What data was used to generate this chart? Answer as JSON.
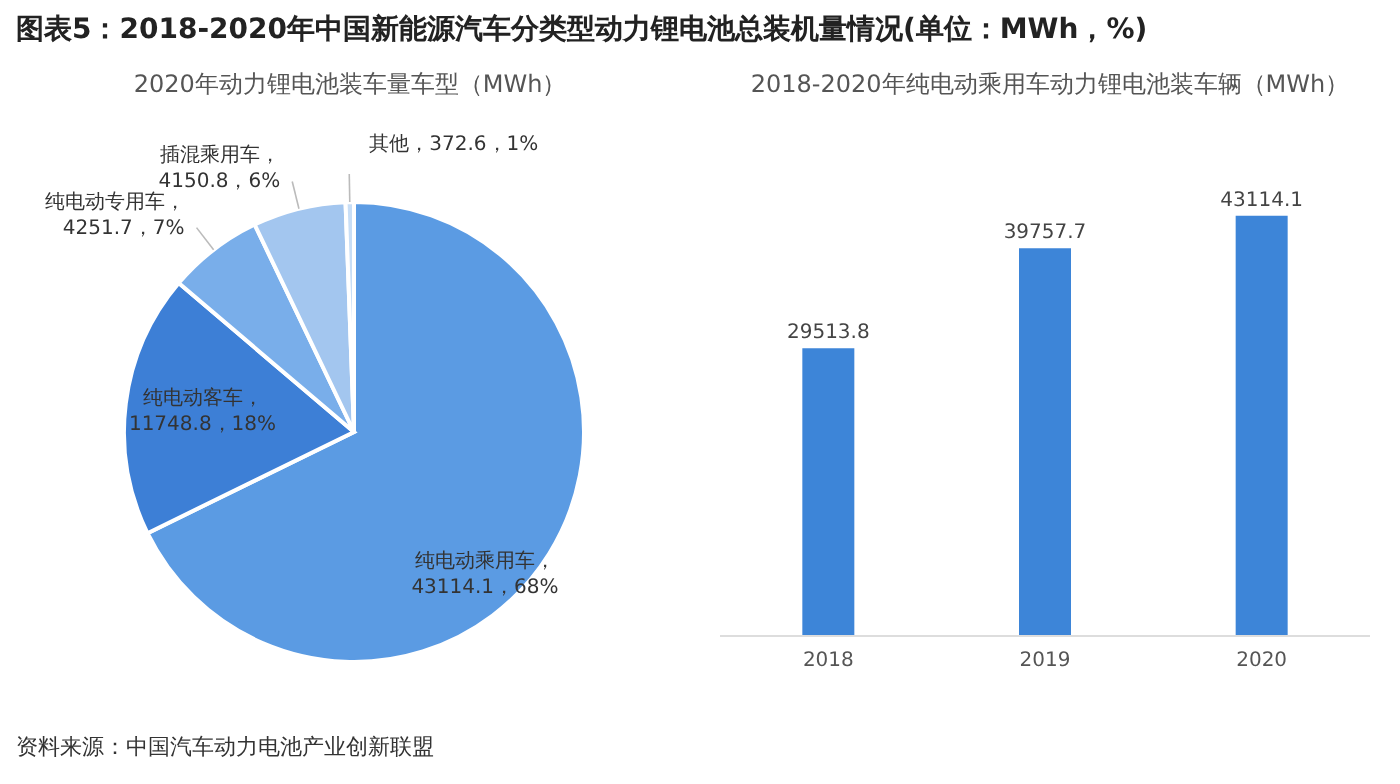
{
  "chart_data": [
    {
      "type": "pie",
      "title": "图表5：2018-2020年中国新能源汽车分类型动力锂电池总装机量情况(单位：MWh，%)",
      "subtitle": "2020年动力锂电池装车量车型（MWh）",
      "categories": [
        "纯电动乘用车",
        "纯电动客车",
        "纯电动专用车",
        "插混乘用车",
        "其他"
      ],
      "values": [
        43114.1,
        11748.8,
        4251.7,
        4150.8,
        372.6
      ],
      "colors": [
        "#5b9be3",
        "#3d7fd6",
        "#79aeea",
        "#a3c6ef",
        "#c8def6"
      ],
      "value_labels": [
        "，\n43114.1，68%",
        "，\n11748.8，18%",
        "，\n4251.7，7%",
        "，\n4150.8，6%",
        "，372.6，1%"
      ],
      "annotations": [
        "资料来源：中国汽车动力电池产业创新联盟"
      ]
    },
    {
      "type": "bar",
      "title": "2018-2020年纯电动乘用车动力锂电池装车辆（MWh）",
      "categories": [
        "2018",
        "2019",
        "2020"
      ],
      "values": [
        29513.8,
        39757.7,
        43114.1
      ],
      "color": "#3d85d8",
      "data_labels": true
    }
  ]
}
